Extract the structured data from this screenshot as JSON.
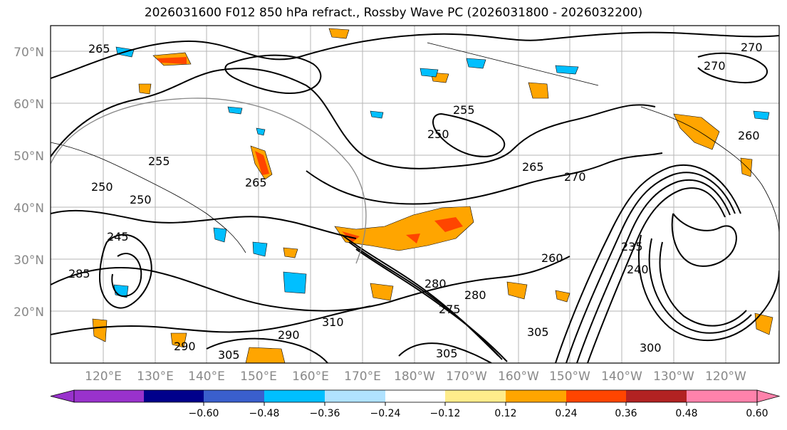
{
  "title": "2026031600 F012 850 hPa refract., Rossby Wave PC (2026031800 - 2026032200)",
  "latitude_labels": [
    "70°N",
    "60°N",
    "50°N",
    "40°N",
    "30°N",
    "20°N"
  ],
  "longitude_labels": [
    "120°E",
    "130°E",
    "140°E",
    "150°E",
    "160°E",
    "170°E",
    "180°W",
    "170°W",
    "160°W",
    "150°W",
    "140°W",
    "130°W",
    "120°W"
  ],
  "colorbar": {
    "ticks": [
      "−0.60",
      "−0.48",
      "−0.36",
      "−0.24",
      "−0.12",
      "0.12",
      "0.24",
      "0.36",
      "0.48",
      "0.60"
    ],
    "colors": [
      "#9932CC",
      "#00008B",
      "#3A5FCD",
      "#00BFFF",
      "#B0E2FF",
      "#FFFFFF",
      "#FFEC8B",
      "#FFA500",
      "#FF4500",
      "#B22222",
      "#FF82AB"
    ]
  },
  "contour_labels": [
    "265",
    "255",
    "250",
    "265",
    "270",
    "270",
    "260",
    "255",
    "250",
    "250",
    "245",
    "265",
    "235",
    "240",
    "260",
    "275",
    "280",
    "280",
    "285",
    "290",
    "290",
    "305",
    "305",
    "305",
    "310",
    "300",
    "270"
  ]
}
